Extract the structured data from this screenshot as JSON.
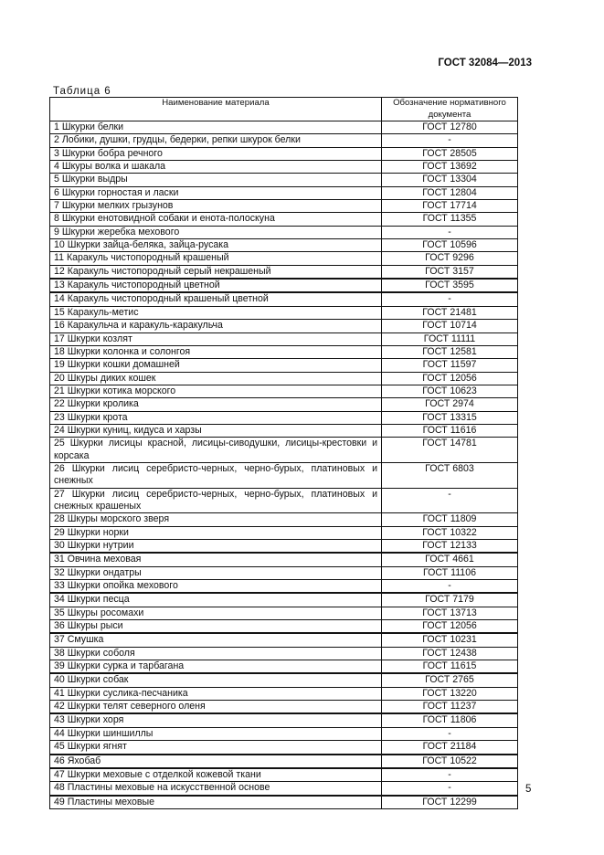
{
  "header": {
    "doc_code": "ГОСТ 32084—2013"
  },
  "table": {
    "caption": "Таблица 6",
    "columns": [
      "Наименование материала",
      "Обозначение нормативного документа"
    ],
    "rows": [
      [
        "1 Шкурки белки",
        "ГОСТ 12780"
      ],
      [
        "2 Лобики, душки, грудцы, бедерки, репки шкурок белки",
        "-"
      ],
      [
        "3 Шкурки бобра речного",
        "ГОСТ 28505"
      ],
      [
        "4 Шкуры волка и шакала",
        "ГОСТ 13692"
      ],
      [
        "5 Шкурки выдры",
        "ГОСТ 13304"
      ],
      [
        "6 Шкурки горностая и ласки",
        "ГОСТ 12804"
      ],
      [
        "7 Шкурки мелких грызунов",
        "ГОСТ 17714"
      ],
      [
        "8 Шкурки енотовидной собаки и енота-полоскуна",
        "ГОСТ 11355"
      ],
      [
        "9 Шкурки жеребка мехового",
        "-"
      ],
      [
        "10 Шкурки зайца-беляка, зайца-русака",
        "ГОСТ 10596"
      ],
      [
        "11 Каракуль чистопородный крашеный",
        "ГОСТ 9296"
      ],
      [
        "12 Каракуль чистопородный серый некрашеный",
        "ГОСТ 3157"
      ],
      [
        "13 Каракуль чистопородный цветной",
        "ГОСТ 3595"
      ],
      [
        "14 Каракуль чистопородный крашеный цветной",
        "-"
      ],
      [
        "15 Каракуль-метис",
        "ГОСТ 21481"
      ],
      [
        "16 Каракульча и каракуль-каракульча",
        "ГОСТ 10714"
      ],
      [
        "17 Шкурки козлят",
        "ГОСТ 11111"
      ],
      [
        "18 Шкурки колонка и солонгоя",
        "ГОСТ 12581"
      ],
      [
        "19 Шкурки кошки домашней",
        "ГОСТ 11597"
      ],
      [
        "20 Шкуры диких кошек",
        "ГОСТ 12056"
      ],
      [
        "21 Шкурки котика морского",
        "ГОСТ 10623"
      ],
      [
        "22 Шкурки кролика",
        "ГОСТ  2974"
      ],
      [
        "23 Шкурки крота",
        "ГОСТ 13315"
      ],
      [
        "24 Шкурки куниц, кидуса и харзы",
        "ГОСТ 11616"
      ],
      [
        "25 Шкурки лисицы красной, лисицы-сиводушки, лисицы-крестовки и корсака",
        "ГОСТ 14781"
      ],
      [
        "26 Шкурки лисиц серебристо-черных, черно-бурых, платиновых и снежных",
        "ГОСТ 6803"
      ],
      [
        "27 Шкурки лисиц серебристо-черных, черно-бурых, платиновых и снежных крашеных",
        "-"
      ],
      [
        "28 Шкуры морского зверя",
        "ГОСТ 11809"
      ],
      [
        "29 Шкурки норки",
        "ГОСТ 10322"
      ],
      [
        "30 Шкурки нутрии",
        "ГОСТ 12133"
      ],
      [
        "31 Овчина меховая",
        "ГОСТ 4661"
      ],
      [
        "32 Шкурки ондатры",
        "ГОСТ 11106"
      ],
      [
        "33 Шкурки опойка мехового",
        "-"
      ],
      [
        "34 Шкурки песца",
        "ГОСТ 7179"
      ],
      [
        "35 Шкуры росомахи",
        "ГОСТ 13713"
      ],
      [
        "36 Шкуры рыси",
        "ГОСТ 12056"
      ],
      [
        "37 Смушка",
        "ГОСТ 10231"
      ],
      [
        "38 Шкурки соболя",
        "ГОСТ 12438"
      ],
      [
        "39 Шкурки сурка и тарбагана",
        "ГОСТ 11615"
      ],
      [
        "40 Шкурки собак",
        "ГОСТ  2765"
      ],
      [
        "41 Шкурки суслика-песчаника",
        "ГОСТ 13220"
      ],
      [
        "42 Шкурки телят северного оленя",
        "ГОСТ 11237"
      ],
      [
        "43 Шкурки хоря",
        "ГОСТ 11806"
      ],
      [
        "44 Шкурки шиншиллы",
        "-"
      ],
      [
        "45 Шкурки ягнят",
        "ГОСТ 21184"
      ],
      [
        "46 Яхобаб",
        "ГОСТ 10522"
      ],
      [
        "47 Шкурки меховые с отделкой кожевой ткани",
        "-"
      ],
      [
        "48 Пластины меховые на искусственной основе",
        "-"
      ],
      [
        "49 Пластины меховые",
        "ГОСТ  12299"
      ]
    ]
  },
  "footer": {
    "page_number": "5"
  }
}
